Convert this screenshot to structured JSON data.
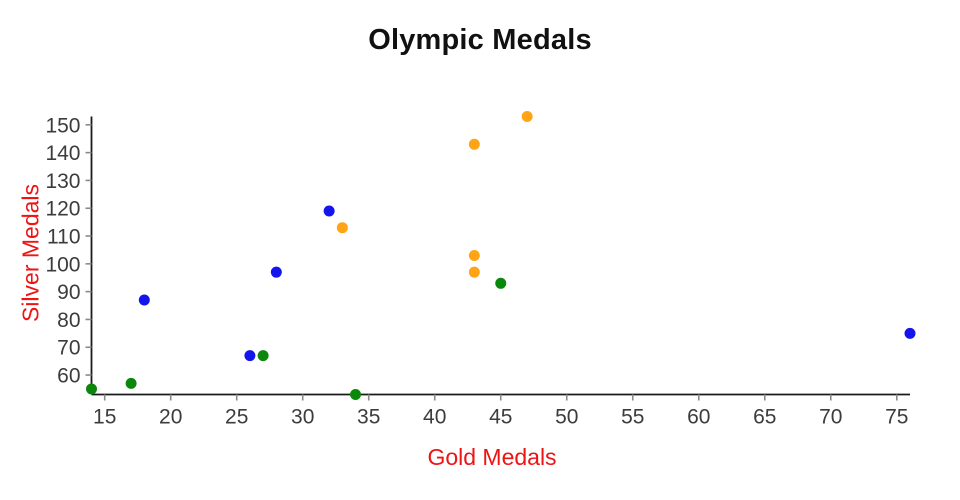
{
  "chart_data": {
    "type": "scatter",
    "title": "Olympic Medals",
    "xlabel": "Gold Medals",
    "ylabel": "Silver Medals",
    "xlim": [
      14,
      76
    ],
    "ylim": [
      53,
      153
    ],
    "x_ticks": [
      15,
      20,
      25,
      30,
      35,
      40,
      45,
      50,
      55,
      60,
      65,
      70,
      75
    ],
    "y_ticks": [
      60,
      70,
      80,
      90,
      100,
      110,
      120,
      130,
      140,
      150
    ],
    "grid": false,
    "legend": false,
    "marker_radius": 5.5,
    "series": [
      {
        "name": "blue-series",
        "color": "#1414ee",
        "points": [
          [
            18,
            87
          ],
          [
            26,
            67
          ],
          [
            28,
            97
          ],
          [
            32,
            119
          ],
          [
            76,
            75
          ]
        ]
      },
      {
        "name": "green-series",
        "color": "#0b880b",
        "points": [
          [
            14,
            55
          ],
          [
            17,
            57
          ],
          [
            27,
            67
          ],
          [
            34,
            53
          ],
          [
            45,
            93
          ]
        ]
      },
      {
        "name": "orange-series",
        "color": "#ffa415",
        "points": [
          [
            33,
            113
          ],
          [
            43,
            143
          ],
          [
            43,
            103
          ],
          [
            43,
            97
          ],
          [
            47,
            153
          ]
        ]
      }
    ],
    "colors": {
      "title": "#111111",
      "axis_labels": "#ee1414",
      "tick_labels": "#3c3c3c",
      "axis_line": "#1a1a1a",
      "tick_marks": "#8a8a8a"
    }
  }
}
